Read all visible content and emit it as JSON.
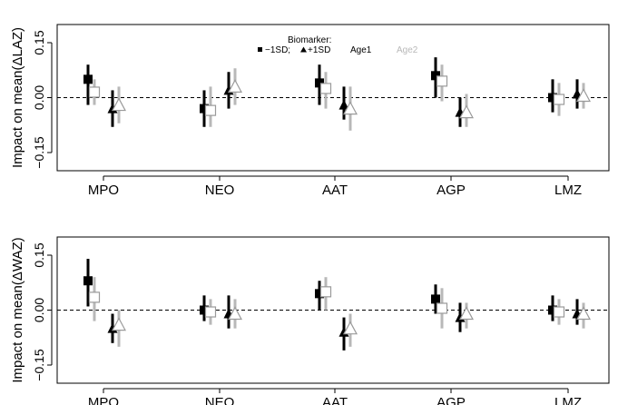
{
  "chart_data": [
    {
      "type": "scatter",
      "panel": "top",
      "ylabel": "Impact on mean(ΔLAZ)",
      "categories": [
        "MPO",
        "NEO",
        "AAT",
        "AGP",
        "LMZ"
      ],
      "yticks": [
        "0.15",
        "0.00",
        "−0.15"
      ],
      "ytick_values": [
        0.15,
        0.0,
        -0.15
      ],
      "ylim": [
        -0.2,
        0.2
      ],
      "reference_line": 0,
      "legend": {
        "title": "Biomarker:",
        "minus_label": "−1SD;",
        "plus_label": "+1SD",
        "age1_label": "Age1",
        "age2_label": "Age2"
      },
      "series": [
        {
          "name": "−1SD Age1",
          "values": [
            0.05,
            -0.03,
            0.04,
            0.06,
            0.0
          ],
          "lower": [
            -0.02,
            -0.08,
            -0.02,
            0.0,
            -0.04
          ],
          "upper": [
            0.09,
            0.02,
            0.09,
            0.11,
            0.05
          ]
        },
        {
          "name": "−1SD Age2",
          "values": [
            0.015,
            -0.035,
            0.025,
            0.045,
            -0.005
          ],
          "lower": [
            -0.02,
            -0.08,
            -0.03,
            -0.01,
            -0.05
          ],
          "upper": [
            0.05,
            0.03,
            0.07,
            0.09,
            0.04
          ]
        },
        {
          "name": "+1SD Age1",
          "values": [
            -0.03,
            0.02,
            -0.02,
            -0.04,
            0.01
          ],
          "lower": [
            -0.08,
            -0.03,
            -0.06,
            -0.08,
            -0.03
          ],
          "upper": [
            0.02,
            0.07,
            0.03,
            0.0,
            0.05
          ]
        },
        {
          "name": "+1SD Age2",
          "values": [
            -0.02,
            0.03,
            -0.03,
            -0.04,
            0.005
          ],
          "lower": [
            -0.07,
            -0.02,
            -0.09,
            -0.08,
            -0.03
          ],
          "upper": [
            0.03,
            0.08,
            0.03,
            0.01,
            0.04
          ]
        }
      ]
    },
    {
      "type": "scatter",
      "panel": "bottom",
      "ylabel": "Impact on mean(ΔWAZ)",
      "categories": [
        "MPO",
        "NEO",
        "AAT",
        "AGP",
        "LMZ"
      ],
      "yticks": [
        "0.15",
        "0.00",
        "−0.15"
      ],
      "ytick_values": [
        0.15,
        0.0,
        -0.15
      ],
      "ylim": [
        -0.2,
        0.2
      ],
      "reference_line": 0,
      "series": [
        {
          "name": "−1SD Age1",
          "values": [
            0.08,
            0.0,
            0.045,
            0.03,
            0.0
          ],
          "lower": [
            0.01,
            -0.03,
            0.0,
            -0.01,
            -0.03
          ],
          "upper": [
            0.14,
            0.04,
            0.08,
            0.07,
            0.04
          ]
        },
        {
          "name": "−1SD Age2",
          "values": [
            0.035,
            -0.005,
            0.05,
            0.005,
            -0.005
          ],
          "lower": [
            -0.03,
            -0.04,
            0.0,
            -0.05,
            -0.04
          ],
          "upper": [
            0.09,
            0.03,
            0.09,
            0.06,
            0.03
          ]
        },
        {
          "name": "+1SD Age1",
          "values": [
            -0.05,
            -0.01,
            -0.06,
            -0.02,
            -0.01
          ],
          "lower": [
            -0.09,
            -0.05,
            -0.11,
            -0.06,
            -0.04
          ],
          "upper": [
            -0.01,
            0.04,
            -0.02,
            0.02,
            0.03
          ]
        },
        {
          "name": "+1SD Age2",
          "values": [
            -0.04,
            -0.01,
            -0.05,
            -0.01,
            -0.01
          ],
          "lower": [
            -0.1,
            -0.05,
            -0.1,
            -0.05,
            -0.05
          ],
          "upper": [
            0.0,
            0.03,
            -0.01,
            0.02,
            0.02
          ]
        }
      ]
    }
  ],
  "colors": {
    "age1": "#000000",
    "age2": "#9a9a9a",
    "age2_light": "#b8b8b8",
    "frame": "#000000",
    "reference_line": "#000000"
  }
}
